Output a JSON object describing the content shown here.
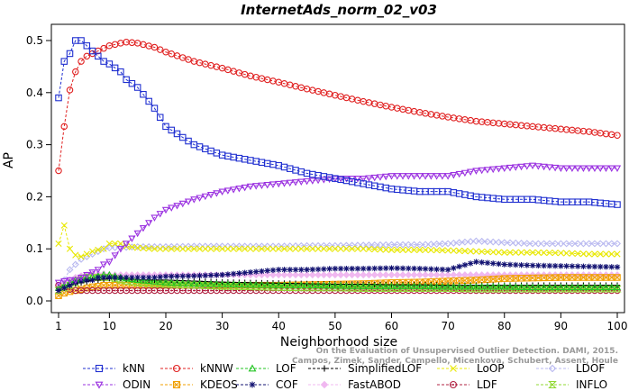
{
  "chart_data": {
    "type": "line",
    "title": "InternetAds_norm_02_v03",
    "xlabel": "Neighborhood size",
    "ylabel": "AP",
    "xlim": [
      1,
      100
    ],
    "ylim": [
      0,
      0.52
    ],
    "x_ticks": [
      1,
      10,
      20,
      30,
      40,
      50,
      60,
      70,
      80,
      90,
      100
    ],
    "y_ticks": [
      0.0,
      0.1,
      0.2,
      0.3,
      0.4,
      0.5
    ],
    "grid": false,
    "legend_position": "bottom",
    "watermark": "Campos, Zimek, Sander, Campello, Micenkova, Schubert, Assent, Houle: On the Evaluation of Unsupervised Outlier Detection. DAMI, 2015.",
    "watermark_lines": [
      "On the Evaluation of Unsupervised Outlier Detection. DAMI, 2015.",
      "Campos, Zimek, Sander, Campello, Micenkova, Schubert, Assent, Houle"
    ],
    "x_knots": [
      1,
      2,
      3,
      4,
      5,
      6,
      7,
      8,
      9,
      10,
      12,
      13,
      15,
      18,
      20,
      25,
      30,
      35,
      40,
      45,
      50,
      55,
      60,
      65,
      70,
      75,
      80,
      85,
      90,
      95,
      100
    ],
    "series": [
      {
        "name": "kNN",
        "color": "#1f2fd0",
        "marker": "square",
        "values": [
          0.39,
          0.46,
          0.475,
          0.5,
          0.5,
          0.49,
          0.48,
          0.47,
          0.46,
          0.455,
          0.44,
          0.425,
          0.41,
          0.37,
          0.335,
          0.3,
          0.28,
          0.27,
          0.26,
          0.245,
          0.235,
          0.225,
          0.215,
          0.21,
          0.21,
          0.2,
          0.195,
          0.195,
          0.19,
          0.19,
          0.185
        ]
      },
      {
        "name": "kNNW",
        "color": "#e02020",
        "marker": "circle",
        "values": [
          0.25,
          0.335,
          0.405,
          0.44,
          0.46,
          0.47,
          0.475,
          0.48,
          0.485,
          0.49,
          0.495,
          0.497,
          0.495,
          0.487,
          0.478,
          0.46,
          0.447,
          0.432,
          0.42,
          0.407,
          0.395,
          0.383,
          0.372,
          0.362,
          0.353,
          0.345,
          0.34,
          0.335,
          0.33,
          0.325,
          0.318
        ]
      },
      {
        "name": "LOF",
        "color": "#22c422",
        "marker": "triangle-up",
        "values": [
          0.025,
          0.03,
          0.035,
          0.04,
          0.042,
          0.045,
          0.047,
          0.048,
          0.05,
          0.05,
          0.045,
          0.043,
          0.04,
          0.037,
          0.035,
          0.033,
          0.032,
          0.031,
          0.03,
          0.03,
          0.029,
          0.028,
          0.028,
          0.028,
          0.027,
          0.027,
          0.027,
          0.026,
          0.026,
          0.026,
          0.026
        ]
      },
      {
        "name": "SimplifiedLOF",
        "color": "#000000",
        "marker": "plus",
        "values": [
          0.02,
          0.025,
          0.03,
          0.033,
          0.035,
          0.037,
          0.04,
          0.04,
          0.042,
          0.043,
          0.043,
          0.042,
          0.04,
          0.04,
          0.04,
          0.038,
          0.036,
          0.035,
          0.034,
          0.033,
          0.032,
          0.032,
          0.031,
          0.031,
          0.03,
          0.03,
          0.03,
          0.03,
          0.03,
          0.03,
          0.03
        ]
      },
      {
        "name": "LoOP",
        "color": "#e8e800",
        "marker": "x",
        "values": [
          0.11,
          0.145,
          0.1,
          0.088,
          0.085,
          0.09,
          0.095,
          0.098,
          0.1,
          0.11,
          0.11,
          0.105,
          0.102,
          0.1,
          0.1,
          0.1,
          0.1,
          0.1,
          0.1,
          0.1,
          0.1,
          0.1,
          0.098,
          0.098,
          0.097,
          0.095,
          0.093,
          0.093,
          0.092,
          0.09,
          0.09
        ]
      },
      {
        "name": "LDOF",
        "color": "#b8b8f0",
        "marker": "diamond",
        "values": [
          0.03,
          0.04,
          0.06,
          0.07,
          0.08,
          0.085,
          0.09,
          0.095,
          0.1,
          0.102,
          0.103,
          0.103,
          0.104,
          0.104,
          0.104,
          0.105,
          0.105,
          0.105,
          0.105,
          0.106,
          0.106,
          0.107,
          0.108,
          0.108,
          0.11,
          0.115,
          0.112,
          0.11,
          0.11,
          0.11,
          0.11
        ]
      },
      {
        "name": "ODIN",
        "color": "#9a30e0",
        "marker": "triangle-down",
        "values": [
          0.035,
          0.038,
          0.04,
          0.04,
          0.045,
          0.05,
          0.055,
          0.06,
          0.07,
          0.075,
          0.1,
          0.11,
          0.13,
          0.16,
          0.175,
          0.195,
          0.21,
          0.22,
          0.225,
          0.23,
          0.235,
          0.235,
          0.24,
          0.24,
          0.24,
          0.25,
          0.255,
          0.26,
          0.255,
          0.255,
          0.255
        ]
      },
      {
        "name": "KDEOS",
        "color": "#f0a000",
        "marker": "square-x",
        "values": [
          0.01,
          0.015,
          0.018,
          0.02,
          0.022,
          0.025,
          0.027,
          0.028,
          0.03,
          0.03,
          0.03,
          0.03,
          0.03,
          0.03,
          0.03,
          0.03,
          0.03,
          0.03,
          0.03,
          0.031,
          0.032,
          0.033,
          0.035,
          0.036,
          0.038,
          0.04,
          0.043,
          0.044,
          0.045,
          0.045,
          0.045
        ]
      },
      {
        "name": "COF",
        "color": "#101070",
        "marker": "asterisk",
        "values": [
          0.02,
          0.025,
          0.03,
          0.035,
          0.038,
          0.04,
          0.04,
          0.045,
          0.045,
          0.045,
          0.045,
          0.045,
          0.045,
          0.045,
          0.047,
          0.048,
          0.05,
          0.055,
          0.06,
          0.06,
          0.062,
          0.062,
          0.063,
          0.062,
          0.06,
          0.075,
          0.07,
          0.068,
          0.067,
          0.066,
          0.065
        ]
      },
      {
        "name": "FastABOD",
        "color": "#f0b8f0",
        "marker": "diamond-filled",
        "values": [
          0.03,
          0.035,
          0.04,
          0.045,
          0.048,
          0.05,
          0.052,
          0.052,
          0.052,
          0.05,
          0.05,
          0.05,
          0.05,
          0.05,
          0.05,
          0.05,
          0.05,
          0.05,
          0.05,
          0.05,
          0.05,
          0.05,
          0.05,
          0.05,
          0.05,
          0.05,
          0.05,
          0.05,
          0.05,
          0.05,
          0.05
        ]
      },
      {
        "name": "LDF",
        "color": "#b02040",
        "marker": "circle-dot",
        "values": [
          0.03,
          0.025,
          0.022,
          0.02,
          0.02,
          0.02,
          0.02,
          0.02,
          0.02,
          0.02,
          0.02,
          0.02,
          0.02,
          0.02,
          0.02,
          0.02,
          0.02,
          0.02,
          0.02,
          0.02,
          0.02,
          0.02,
          0.02,
          0.02,
          0.02,
          0.02,
          0.02,
          0.02,
          0.02,
          0.02,
          0.02
        ]
      },
      {
        "name": "INFLO",
        "color": "#90d830",
        "marker": "hourglass",
        "values": [
          0.02,
          0.025,
          0.03,
          0.035,
          0.04,
          0.045,
          0.045,
          0.045,
          0.045,
          0.045,
          0.04,
          0.038,
          0.035,
          0.033,
          0.032,
          0.03,
          0.028,
          0.027,
          0.026,
          0.025,
          0.025,
          0.024,
          0.024,
          0.024,
          0.024,
          0.023,
          0.023,
          0.023,
          0.023,
          0.023,
          0.023
        ]
      }
    ]
  }
}
